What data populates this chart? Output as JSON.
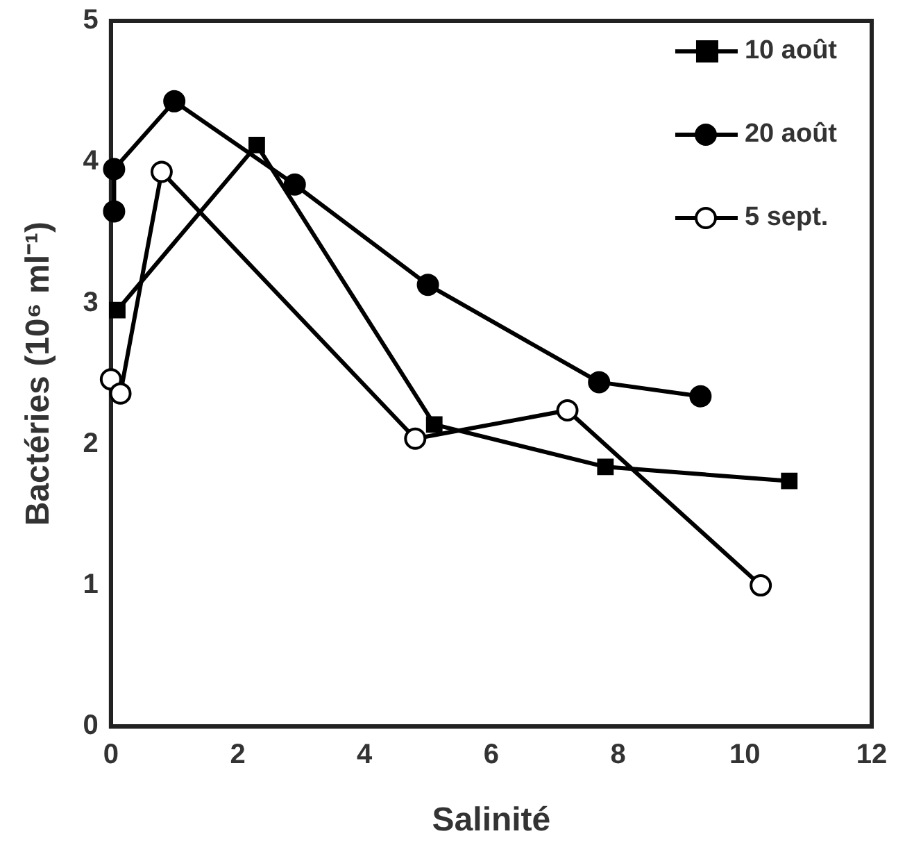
{
  "chart_data": {
    "type": "line",
    "xlabel": "Salinité",
    "ylabel": "Bactéries (10⁶ ml⁻¹)",
    "xlim": [
      0,
      12
    ],
    "xticks": [
      0,
      2,
      4,
      6,
      8,
      10,
      12
    ],
    "ylim": [
      0,
      5
    ],
    "yticks": [
      0,
      1,
      2,
      3,
      4,
      5
    ],
    "grid": false,
    "legend": "top right",
    "line_style": "solid",
    "series": [
      {
        "name": "10 août",
        "color": "#000000",
        "marker": "square",
        "x": [
          0.1,
          2.3,
          5.1,
          7.8,
          10.7
        ],
        "values": [
          2.95,
          4.12,
          2.14,
          1.84,
          1.74
        ]
      },
      {
        "name": "20 août",
        "color": "#000000",
        "marker": "circle",
        "x": [
          0.05,
          0.05,
          1.0,
          2.9,
          5.0,
          7.7,
          9.3
        ],
        "values": [
          3.65,
          3.95,
          4.43,
          3.84,
          3.13,
          2.44,
          2.34
        ]
      },
      {
        "name": "5 sept.",
        "color": "#000000",
        "marker": "circle",
        "x": [
          0.0,
          0.15,
          0.8,
          4.8,
          7.2,
          10.25
        ],
        "values": [
          2.46,
          2.36,
          3.93,
          2.04,
          2.24,
          1.0
        ]
      }
    ]
  }
}
